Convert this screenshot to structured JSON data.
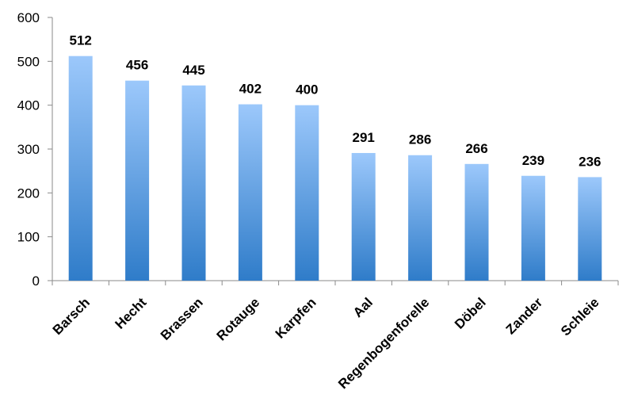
{
  "chart_data": {
    "type": "bar",
    "categories": [
      "Barsch",
      "Hecht",
      "Brassen",
      "Rotauge",
      "Karpfen",
      "Aal",
      "Regenbogenforelle",
      "Döbel",
      "Zander",
      "Schleie"
    ],
    "values": [
      512,
      456,
      445,
      402,
      400,
      291,
      286,
      266,
      239,
      236
    ],
    "y_ticks": [
      "0",
      "100",
      "200",
      "300",
      "400",
      "500",
      "600"
    ],
    "ylim": [
      0,
      600
    ],
    "grid": false,
    "data_labels": true,
    "colors": {
      "bar_top": "#9cc8fb",
      "bar_bottom": "#2f7cc9",
      "axis": "#8a8a8a"
    }
  }
}
